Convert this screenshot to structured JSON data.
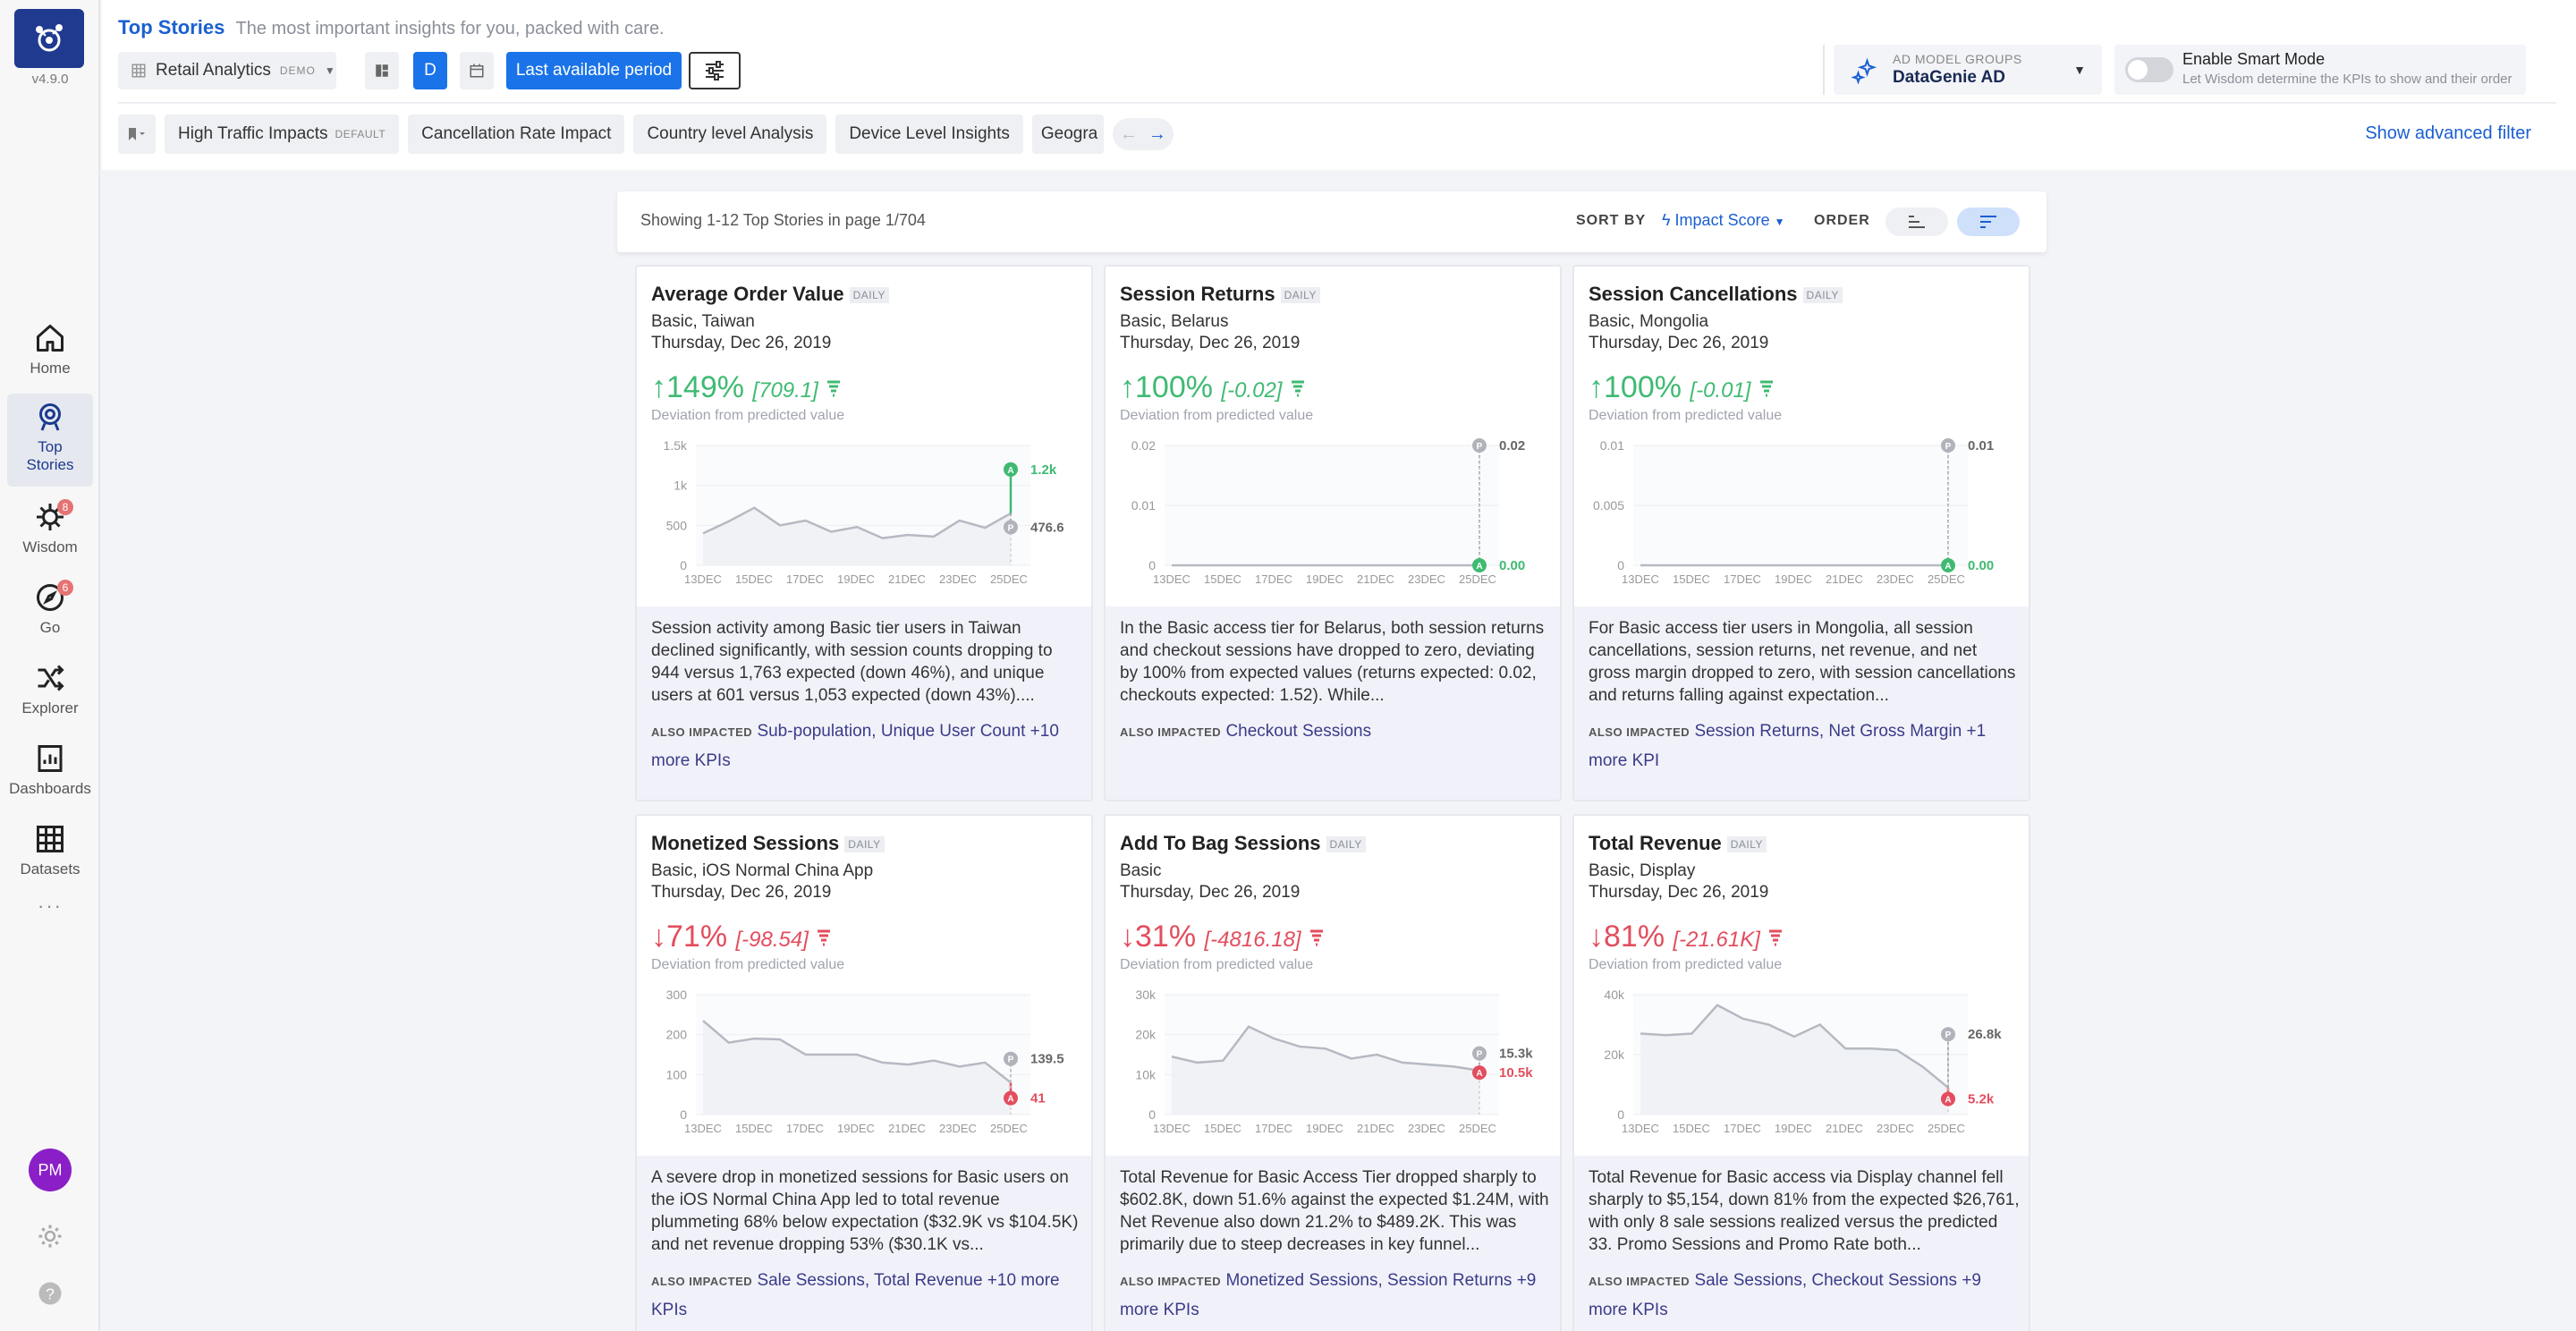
{
  "app": {
    "version": "v4.9.0",
    "avatar_initials": "PM"
  },
  "sidebar": {
    "items": [
      {
        "label": "Home",
        "icon": "home-icon"
      },
      {
        "label": "Top Stories",
        "icon": "top-stories-icon"
      },
      {
        "label": "Wisdom",
        "icon": "wisdom-icon",
        "badge": "8"
      },
      {
        "label": "Go",
        "icon": "go-icon",
        "badge": "6"
      },
      {
        "label": "Explorer",
        "icon": "explorer-icon"
      },
      {
        "label": "Dashboards",
        "icon": "dashboards-icon"
      },
      {
        "label": "Datasets",
        "icon": "datasets-icon"
      }
    ],
    "more": "···"
  },
  "header": {
    "title": "Top Stories",
    "subtitle": "The most important insights for you, packed with care.",
    "dataset": {
      "label": "Retail Analytics",
      "tag": "DEMO"
    },
    "granularity": "D",
    "period": "Last available period",
    "ad_model": {
      "label": "AD MODEL GROUPS",
      "value": "DataGenie AD"
    },
    "smart_mode": {
      "title": "Enable Smart Mode",
      "hint": "Let Wisdom determine the KPIs to show and their order"
    },
    "story_tabs": [
      {
        "label": "High Traffic Impacts",
        "tag": "DEFAULT"
      },
      {
        "label": "Cancellation Rate Impact"
      },
      {
        "label": "Country level Analysis"
      },
      {
        "label": "Device Level Insights"
      },
      {
        "label": "Geogra"
      }
    ],
    "advanced_filter": "Show advanced filter"
  },
  "toolbar": {
    "showing": "Showing 1-12 Top Stories in page 1/704",
    "sort_by": "SORT BY",
    "sort_value": "Impact Score",
    "order": "ORDER"
  },
  "colors": {
    "accent": "#1a5fd1",
    "up": "#3fba72",
    "down": "#e34d5e",
    "brand": "#1f3a8f"
  },
  "cards": [
    {
      "title": "Average Order Value",
      "freq": "DAILY",
      "segment": "Basic, Taiwan",
      "date": "Thursday, Dec 26, 2019",
      "direction": "up",
      "pct": "149%",
      "delta": "[709.1]",
      "dev_label": "Deviation from predicted value",
      "desc": "Session activity among Basic tier users in Taiwan declined significantly, with session counts dropping to 944 versus 1,763 expected (down 46%), and unique users at 601 versus 1,053 expected (down 43%)....",
      "also_label": "ALSO IMPACTED",
      "also": "Sub-population, Unique User Count +10 more KPIs",
      "chart_data": {
        "type": "line",
        "y_ticks": [
          "1.5k",
          "1k",
          "500",
          "0"
        ],
        "ymax": 1500,
        "x_ticks": [
          "13DEC",
          "15DEC",
          "17DEC",
          "19DEC",
          "21DEC",
          "23DEC",
          "25DEC"
        ],
        "values": [
          400,
          550,
          720,
          500,
          560,
          420,
          480,
          340,
          380,
          360,
          560,
          470,
          650
        ],
        "actual": 1200,
        "predicted": 476.6,
        "actual_label": "1.2k",
        "pred_label": "476.6"
      }
    },
    {
      "title": "Session Returns",
      "freq": "DAILY",
      "segment": "Basic, Belarus",
      "date": "Thursday, Dec 26, 2019",
      "direction": "up",
      "pct": "100%",
      "delta": "[-0.02]",
      "dev_label": "Deviation from predicted value",
      "desc": "In the Basic access tier for Belarus, both session returns and checkout sessions have dropped to zero, deviating by 100% from expected values (returns expected: 0.02, checkouts expected: 1.52). While...",
      "also_label": "ALSO IMPACTED",
      "also": "Checkout Sessions",
      "chart_data": {
        "type": "line",
        "y_ticks": [
          "0.02",
          "0.01",
          "0"
        ],
        "ymax": 0.02,
        "x_ticks": [
          "13DEC",
          "15DEC",
          "17DEC",
          "19DEC",
          "21DEC",
          "23DEC",
          "25DEC"
        ],
        "values": [
          0,
          0,
          0,
          0,
          0,
          0,
          0,
          0,
          0,
          0,
          0,
          0,
          0
        ],
        "actual": 0,
        "predicted": 0.02,
        "actual_label": "0.00",
        "pred_label": "0.02"
      }
    },
    {
      "title": "Session Cancellations",
      "freq": "DAILY",
      "segment": "Basic, Mongolia",
      "date": "Thursday, Dec 26, 2019",
      "direction": "up",
      "pct": "100%",
      "delta": "[-0.01]",
      "dev_label": "Deviation from predicted value",
      "desc": "For Basic access tier users in Mongolia, all session cancellations, session returns, net revenue, and net gross margin dropped to zero, with session cancellations and returns falling against expectation...",
      "also_label": "ALSO IMPACTED",
      "also": "Session Returns, Net Gross Margin +1 more KPI",
      "chart_data": {
        "type": "line",
        "y_ticks": [
          "0.01",
          "0.005",
          "0"
        ],
        "ymax": 0.01,
        "x_ticks": [
          "13DEC",
          "15DEC",
          "17DEC",
          "19DEC",
          "21DEC",
          "23DEC",
          "25DEC"
        ],
        "values": [
          0,
          0,
          0,
          0,
          0,
          0,
          0,
          0,
          0,
          0,
          0,
          0,
          0
        ],
        "actual": 0,
        "predicted": 0.01,
        "actual_label": "0.00",
        "pred_label": "0.01"
      }
    },
    {
      "title": "Monetized Sessions",
      "freq": "DAILY",
      "segment": "Basic, iOS Normal China App",
      "date": "Thursday, Dec 26, 2019",
      "direction": "down",
      "pct": "71%",
      "delta": "[-98.54]",
      "dev_label": "Deviation from predicted value",
      "desc": "A severe drop in monetized sessions for Basic users on the iOS Normal China App led to total revenue plummeting 68% below expectation ($32.9K vs $104.5K) and net revenue dropping 53% ($30.1K vs...",
      "also_label": "ALSO IMPACTED",
      "also": "Sale Sessions, Total Revenue +10 more KPIs",
      "chart_data": {
        "type": "line",
        "y_ticks": [
          "300",
          "200",
          "100",
          "0"
        ],
        "ymax": 300,
        "x_ticks": [
          "13DEC",
          "15DEC",
          "17DEC",
          "19DEC",
          "21DEC",
          "23DEC",
          "25DEC"
        ],
        "values": [
          235,
          180,
          190,
          188,
          150,
          150,
          150,
          130,
          125,
          135,
          120,
          130,
          80
        ],
        "actual": 41,
        "predicted": 139.5,
        "actual_label": "41",
        "pred_label": "139.5"
      }
    },
    {
      "title": "Add To Bag Sessions",
      "freq": "DAILY",
      "segment": "Basic",
      "date": "Thursday, Dec 26, 2019",
      "direction": "down",
      "pct": "31%",
      "delta": "[-4816.18]",
      "dev_label": "Deviation from predicted value",
      "desc": "Total Revenue for Basic Access Tier dropped sharply to $602.8K, down 51.6% against the expected $1.24M, with Net Revenue also down 21.2% to $489.2K. This was primarily due to steep decreases in key funnel...",
      "also_label": "ALSO IMPACTED",
      "also": "Monetized Sessions, Session Returns +9 more KPIs",
      "chart_data": {
        "type": "line",
        "y_ticks": [
          "30k",
          "20k",
          "10k",
          "0"
        ],
        "ymax": 30000,
        "x_ticks": [
          "13DEC",
          "15DEC",
          "17DEC",
          "19DEC",
          "21DEC",
          "23DEC",
          "25DEC"
        ],
        "values": [
          14500,
          13000,
          13500,
          22000,
          19000,
          17000,
          16500,
          14000,
          15000,
          13000,
          12500,
          12000,
          11000
        ],
        "actual": 10500,
        "predicted": 15300,
        "actual_label": "10.5k",
        "pred_label": "15.3k"
      }
    },
    {
      "title": "Total Revenue",
      "freq": "DAILY",
      "segment": "Basic, Display",
      "date": "Thursday, Dec 26, 2019",
      "direction": "down",
      "pct": "81%",
      "delta": "[-21.61K]",
      "dev_label": "Deviation from predicted value",
      "desc": "Total Revenue for Basic access via Display channel fell sharply to $5,154, down 81% from the expected $26,761, with only 8 sale sessions realized versus the predicted 33. Promo Sessions and Promo Rate both...",
      "also_label": "ALSO IMPACTED",
      "also": "Sale Sessions, Checkout Sessions +9 more KPIs",
      "chart_data": {
        "type": "line",
        "y_ticks": [
          "40k",
          "20k",
          "0"
        ],
        "ymax": 40000,
        "x_ticks": [
          "13DEC",
          "15DEC",
          "17DEC",
          "19DEC",
          "21DEC",
          "23DEC",
          "25DEC"
        ],
        "values": [
          27000,
          26500,
          27000,
          36500,
          32000,
          30000,
          26000,
          30000,
          22000,
          22000,
          21500,
          16000,
          9000
        ],
        "actual": 5200,
        "predicted": 26800,
        "actual_label": "5.2k",
        "pred_label": "26.8k"
      }
    }
  ]
}
